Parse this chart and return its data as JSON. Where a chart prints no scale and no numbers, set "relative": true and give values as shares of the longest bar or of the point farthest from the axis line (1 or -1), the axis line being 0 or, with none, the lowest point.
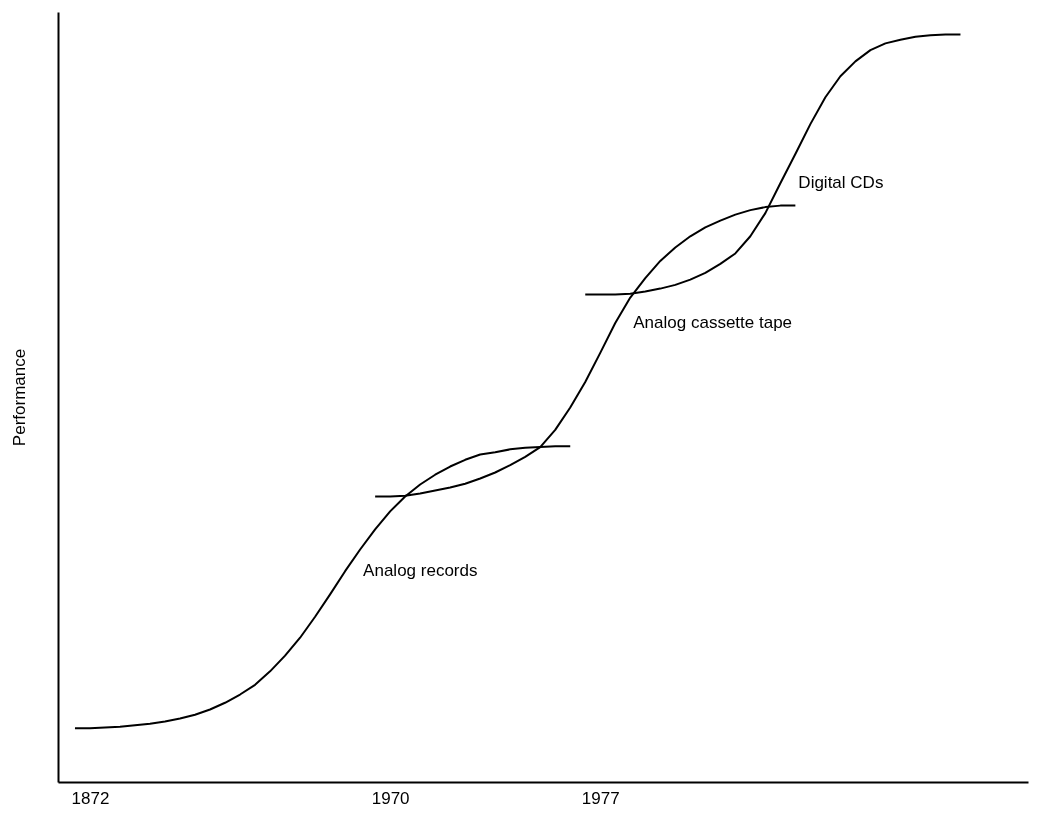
{
  "chart_data": {
    "type": "line",
    "ylabel": "Performance",
    "relative": true,
    "grid": false,
    "marker": "none",
    "line_style": "solid",
    "categories": [
      null,
      "1872",
      null,
      null,
      null,
      null,
      null,
      null,
      null,
      null,
      null,
      null,
      null,
      null,
      null,
      null,
      null,
      null,
      null,
      null,
      null,
      "1970",
      null,
      null,
      null,
      null,
      null,
      null,
      null,
      null,
      null,
      null,
      null,
      null,
      null,
      "1977",
      null,
      null,
      null,
      null,
      null,
      null,
      null,
      null,
      null,
      null,
      null,
      null,
      null,
      null,
      null,
      null,
      null,
      null,
      null,
      null,
      null,
      null,
      null,
      null
    ],
    "series": [
      {
        "name": "Analog records",
        "color": "#000000",
        "values": [
          0.072,
          0.072,
          0.073,
          0.074,
          0.076,
          0.078,
          0.081,
          0.085,
          0.09,
          0.097,
          0.106,
          0.117,
          0.13,
          0.148,
          0.169,
          0.193,
          0.221,
          0.251,
          0.282,
          0.311,
          0.338,
          0.362,
          0.382,
          0.398,
          0.411,
          0.422,
          0.431,
          0.438,
          0.441,
          0.445,
          0.447,
          0.448,
          0.449,
          0.449,
          null,
          null,
          null,
          null,
          null,
          null,
          null,
          null,
          null,
          null,
          null,
          null,
          null,
          null,
          null,
          null,
          null,
          null,
          null,
          null,
          null,
          null,
          null,
          null,
          null,
          null
        ]
      },
      {
        "name": "Analog cassette tape",
        "color": "#000000",
        "values": [
          null,
          null,
          null,
          null,
          null,
          null,
          null,
          null,
          null,
          null,
          null,
          null,
          null,
          null,
          null,
          null,
          null,
          null,
          null,
          null,
          0.382,
          0.382,
          0.383,
          0.386,
          0.39,
          0.394,
          0.399,
          0.406,
          0.414,
          0.424,
          0.435,
          0.448,
          0.471,
          0.501,
          0.535,
          0.574,
          0.614,
          0.648,
          0.674,
          0.697,
          0.715,
          0.73,
          0.742,
          0.751,
          0.759,
          0.765,
          0.769,
          0.771,
          0.771,
          null,
          null,
          null,
          null,
          null,
          null,
          null,
          null,
          null,
          null,
          null
        ]
      },
      {
        "name": "Digital CDs",
        "color": "#000000",
        "values": [
          null,
          null,
          null,
          null,
          null,
          null,
          null,
          null,
          null,
          null,
          null,
          null,
          null,
          null,
          null,
          null,
          null,
          null,
          null,
          null,
          null,
          null,
          null,
          null,
          null,
          null,
          null,
          null,
          null,
          null,
          null,
          null,
          null,
          null,
          0.652,
          0.652,
          0.652,
          0.653,
          0.656,
          0.66,
          0.665,
          0.672,
          0.681,
          0.693,
          0.707,
          0.73,
          0.761,
          0.801,
          0.84,
          0.88,
          0.916,
          0.944,
          0.964,
          0.979,
          0.988,
          0.993,
          0.997,
          0.999,
          1,
          1
        ]
      }
    ]
  }
}
